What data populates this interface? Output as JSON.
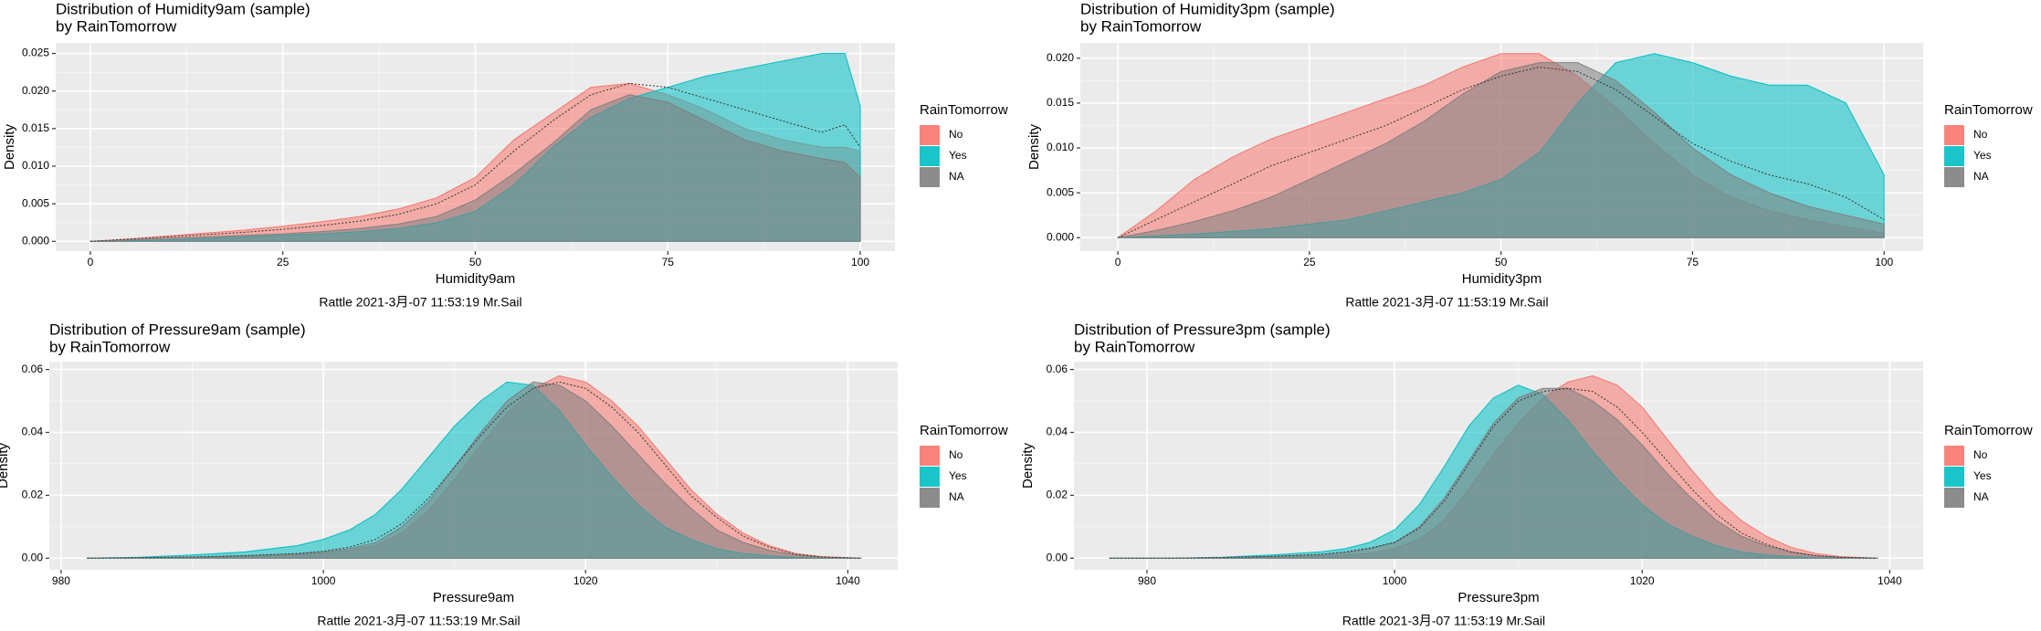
{
  "chart_data": [
    {
      "type": "density",
      "title": "Distribution of Humidity9am (sample)",
      "subtitle": "by RainTomorrow",
      "x_label": "Humidity9am",
      "y_label": "Density",
      "legend_title": "RainTomorrow",
      "legend": "right",
      "caption": "Rattle 2021-3月-07 11:53:19 Mr.Sail",
      "grid": true,
      "xlim": [
        -4.5,
        104.5
      ],
      "ylim": [
        -0.0013,
        0.0264
      ],
      "xticks": [
        0,
        25,
        50,
        75,
        100
      ],
      "yticks": [
        {
          "value": 0,
          "label": "0.000"
        },
        {
          "value": 0.005,
          "label": "0.005"
        },
        {
          "value": 0.01,
          "label": "0.010"
        },
        {
          "value": 0.015,
          "label": "0.015"
        },
        {
          "value": 0.02,
          "label": "0.020"
        },
        {
          "value": 0.025,
          "label": "0.025"
        }
      ],
      "x": [
        0,
        5,
        10,
        15,
        20,
        25,
        30,
        35,
        40,
        45,
        50,
        55,
        60,
        65,
        70,
        75,
        80,
        85,
        90,
        95,
        98,
        100
      ],
      "series": [
        {
          "name": "No",
          "color": "#F8766D",
          "values": [
            0,
            0.0003,
            0.0007,
            0.0011,
            0.0015,
            0.002,
            0.0026,
            0.0033,
            0.0043,
            0.0058,
            0.0085,
            0.0135,
            0.017,
            0.0205,
            0.021,
            0.0195,
            0.0175,
            0.015,
            0.0135,
            0.0125,
            0.0125,
            0.012
          ]
        },
        {
          "name": "Yes",
          "color": "#00BFC4",
          "values": [
            0,
            0.0001,
            0.0002,
            0.0004,
            0.0006,
            0.0008,
            0.001,
            0.0013,
            0.0017,
            0.0025,
            0.004,
            0.0075,
            0.0125,
            0.0165,
            0.019,
            0.0205,
            0.022,
            0.023,
            0.024,
            0.025,
            0.025,
            0.018
          ]
        },
        {
          "name": "NA",
          "color": "#7F7F7F",
          "values": [
            0,
            0.0002,
            0.0004,
            0.0006,
            0.0008,
            0.001,
            0.0013,
            0.0017,
            0.0023,
            0.0033,
            0.0055,
            0.009,
            0.013,
            0.0175,
            0.0195,
            0.0185,
            0.016,
            0.0135,
            0.012,
            0.011,
            0.0105,
            0.0085
          ]
        },
        {
          "color": "#333333",
          "dash": "dotted",
          "values": [
            0,
            0.0003,
            0.0006,
            0.0009,
            0.0012,
            0.0016,
            0.0021,
            0.0027,
            0.0036,
            0.005,
            0.0075,
            0.012,
            0.016,
            0.0195,
            0.021,
            0.0205,
            0.019,
            0.0175,
            0.016,
            0.0145,
            0.0155,
            0.0125
          ]
        }
      ]
    },
    {
      "type": "density",
      "title": "Distribution of Humidity3pm (sample)",
      "subtitle": "by RainTomorrow",
      "x_label": "Humidity3pm",
      "y_label": "Density",
      "legend_title": "RainTomorrow",
      "legend": "right",
      "caption": "Rattle 2021-3月-07 11:53:19 Mr.Sail",
      "grid": true,
      "xlim": [
        -4.9,
        105.1
      ],
      "ylim": [
        -0.0015,
        0.0217
      ],
      "xticks": [
        0,
        25,
        50,
        75,
        100
      ],
      "yticks": [
        {
          "value": 0,
          "label": "0.000"
        },
        {
          "value": 0.005,
          "label": "0.005"
        },
        {
          "value": 0.01,
          "label": "0.010"
        },
        {
          "value": 0.015,
          "label": "0.015"
        },
        {
          "value": 0.02,
          "label": "0.020"
        }
      ],
      "x": [
        0,
        5,
        10,
        15,
        20,
        25,
        30,
        35,
        40,
        45,
        50,
        55,
        60,
        65,
        70,
        75,
        80,
        85,
        90,
        95,
        100
      ],
      "series": [
        {
          "name": "No",
          "color": "#F8766D",
          "values": [
            0,
            0.003,
            0.0065,
            0.009,
            0.011,
            0.0125,
            0.014,
            0.0155,
            0.017,
            0.019,
            0.0205,
            0.0205,
            0.018,
            0.0145,
            0.0105,
            0.007,
            0.0045,
            0.003,
            0.002,
            0.0012,
            0.0005
          ]
        },
        {
          "name": "Yes",
          "color": "#00BFC4",
          "values": [
            0,
            0.0002,
            0.0004,
            0.0007,
            0.001,
            0.0015,
            0.002,
            0.003,
            0.004,
            0.005,
            0.0065,
            0.0095,
            0.015,
            0.0195,
            0.0205,
            0.0195,
            0.018,
            0.017,
            0.017,
            0.015,
            0.007
          ]
        },
        {
          "name": "NA",
          "color": "#7F7F7F",
          "values": [
            0,
            0.0008,
            0.0018,
            0.003,
            0.0045,
            0.0065,
            0.0085,
            0.0105,
            0.013,
            0.016,
            0.0185,
            0.0195,
            0.0195,
            0.0175,
            0.014,
            0.01,
            0.007,
            0.005,
            0.0035,
            0.0025,
            0.0015
          ]
        },
        {
          "color": "#333333",
          "dash": "dotted",
          "values": [
            0,
            0.002,
            0.004,
            0.006,
            0.008,
            0.0095,
            0.011,
            0.0125,
            0.0145,
            0.0165,
            0.018,
            0.019,
            0.0185,
            0.0165,
            0.0135,
            0.0105,
            0.0085,
            0.007,
            0.006,
            0.0045,
            0.002
          ]
        }
      ]
    },
    {
      "type": "density",
      "title": "Distribution of Pressure9am (sample)",
      "subtitle": "by RainTomorrow",
      "x_label": "Pressure9am",
      "y_label": "Density",
      "legend_title": "RainTomorrow",
      "legend": "right",
      "caption": "Rattle 2021-3月-07 11:53:19 Mr.Sail",
      "grid": true,
      "xlim": [
        979.1,
        1043.8
      ],
      "ylim": [
        -0.0037,
        0.0625
      ],
      "xticks": [
        980,
        1000,
        1020,
        1040
      ],
      "yticks": [
        {
          "value": 0,
          "label": "0.00"
        },
        {
          "value": 0.02,
          "label": "0.02"
        },
        {
          "value": 0.04,
          "label": "0.04"
        },
        {
          "value": 0.06,
          "label": "0.06"
        }
      ],
      "x": [
        982,
        986,
        990,
        994,
        998,
        1000,
        1002,
        1004,
        1006,
        1008,
        1010,
        1012,
        1014,
        1016,
        1018,
        1020,
        1022,
        1024,
        1026,
        1028,
        1030,
        1032,
        1034,
        1036,
        1038,
        1041
      ],
      "series": [
        {
          "name": "No",
          "color": "#F8766D",
          "values": [
            0,
            0.0001,
            0.0002,
            0.0005,
            0.001,
            0.0015,
            0.0025,
            0.004,
            0.008,
            0.015,
            0.025,
            0.036,
            0.046,
            0.054,
            0.058,
            0.056,
            0.05,
            0.042,
            0.032,
            0.022,
            0.014,
            0.008,
            0.004,
            0.0015,
            0.0005,
            0
          ]
        },
        {
          "name": "Yes",
          "color": "#00BFC4",
          "values": [
            0,
            0.0003,
            0.001,
            0.002,
            0.004,
            0.006,
            0.009,
            0.014,
            0.022,
            0.032,
            0.042,
            0.05,
            0.056,
            0.055,
            0.047,
            0.036,
            0.026,
            0.017,
            0.01,
            0.006,
            0.003,
            0.0015,
            0.0007,
            0.0003,
            0.0001,
            0
          ]
        },
        {
          "name": "NA",
          "color": "#7F7F7F",
          "values": [
            0,
            0.0001,
            0.0003,
            0.0007,
            0.0013,
            0.002,
            0.003,
            0.005,
            0.01,
            0.018,
            0.029,
            0.04,
            0.05,
            0.056,
            0.055,
            0.05,
            0.042,
            0.033,
            0.024,
            0.016,
            0.009,
            0.005,
            0.0025,
            0.001,
            0.0003,
            0
          ]
        },
        {
          "color": "#333333",
          "dash": "dotted",
          "values": [
            0,
            0.0002,
            0.0004,
            0.0008,
            0.0015,
            0.0022,
            0.0035,
            0.006,
            0.011,
            0.019,
            0.029,
            0.039,
            0.048,
            0.054,
            0.056,
            0.054,
            0.048,
            0.04,
            0.03,
            0.02,
            0.013,
            0.007,
            0.0035,
            0.0013,
            0.0004,
            0
          ]
        }
      ]
    },
    {
      "type": "density",
      "title": "Distribution of Pressure3pm (sample)",
      "subtitle": "by RainTomorrow",
      "x_label": "Pressure3pm",
      "y_label": "Density",
      "legend_title": "RainTomorrow",
      "legend": "right",
      "caption": "Rattle 2021-3月-07 11:53:19 Mr.Sail",
      "grid": true,
      "xlim": [
        974.1,
        1042.7
      ],
      "ylim": [
        -0.0037,
        0.0625
      ],
      "xticks": [
        980,
        1000,
        1020,
        1040
      ],
      "yticks": [
        {
          "value": 0,
          "label": "0.00"
        },
        {
          "value": 0.02,
          "label": "0.02"
        },
        {
          "value": 0.04,
          "label": "0.04"
        },
        {
          "value": 0.06,
          "label": "0.06"
        }
      ],
      "x": [
        977,
        982,
        986,
        990,
        994,
        996,
        998,
        1000,
        1002,
        1004,
        1006,
        1008,
        1010,
        1012,
        1014,
        1016,
        1018,
        1020,
        1022,
        1024,
        1026,
        1028,
        1030,
        1032,
        1034,
        1036,
        1039
      ],
      "series": [
        {
          "name": "No",
          "color": "#F8766D",
          "values": [
            0,
            0,
            0.0001,
            0.0003,
            0.0006,
            0.001,
            0.0015,
            0.003,
            0.006,
            0.012,
            0.022,
            0.033,
            0.043,
            0.051,
            0.056,
            0.058,
            0.055,
            0.048,
            0.038,
            0.028,
            0.019,
            0.012,
            0.007,
            0.0035,
            0.0015,
            0.0005,
            0
          ]
        },
        {
          "name": "Yes",
          "color": "#00BFC4",
          "values": [
            0,
            0,
            0.0003,
            0.001,
            0.002,
            0.003,
            0.005,
            0.009,
            0.017,
            0.029,
            0.042,
            0.051,
            0.055,
            0.052,
            0.044,
            0.034,
            0.025,
            0.017,
            0.011,
            0.007,
            0.004,
            0.002,
            0.001,
            0.0005,
            0.0002,
            0.0001,
            0
          ]
        },
        {
          "name": "NA",
          "color": "#7F7F7F",
          "values": [
            0,
            0,
            0.0002,
            0.0005,
            0.001,
            0.0018,
            0.003,
            0.005,
            0.01,
            0.019,
            0.031,
            0.043,
            0.051,
            0.054,
            0.054,
            0.05,
            0.044,
            0.036,
            0.027,
            0.019,
            0.012,
            0.007,
            0.004,
            0.002,
            0.0008,
            0.0003,
            0
          ]
        },
        {
          "color": "#333333",
          "dash": "dotted",
          "values": [
            0,
            0,
            0.0002,
            0.0006,
            0.0012,
            0.002,
            0.0032,
            0.005,
            0.0095,
            0.018,
            0.03,
            0.042,
            0.05,
            0.053,
            0.054,
            0.053,
            0.048,
            0.04,
            0.031,
            0.022,
            0.014,
            0.008,
            0.0045,
            0.002,
            0.0008,
            0.0003,
            0
          ]
        }
      ]
    }
  ]
}
